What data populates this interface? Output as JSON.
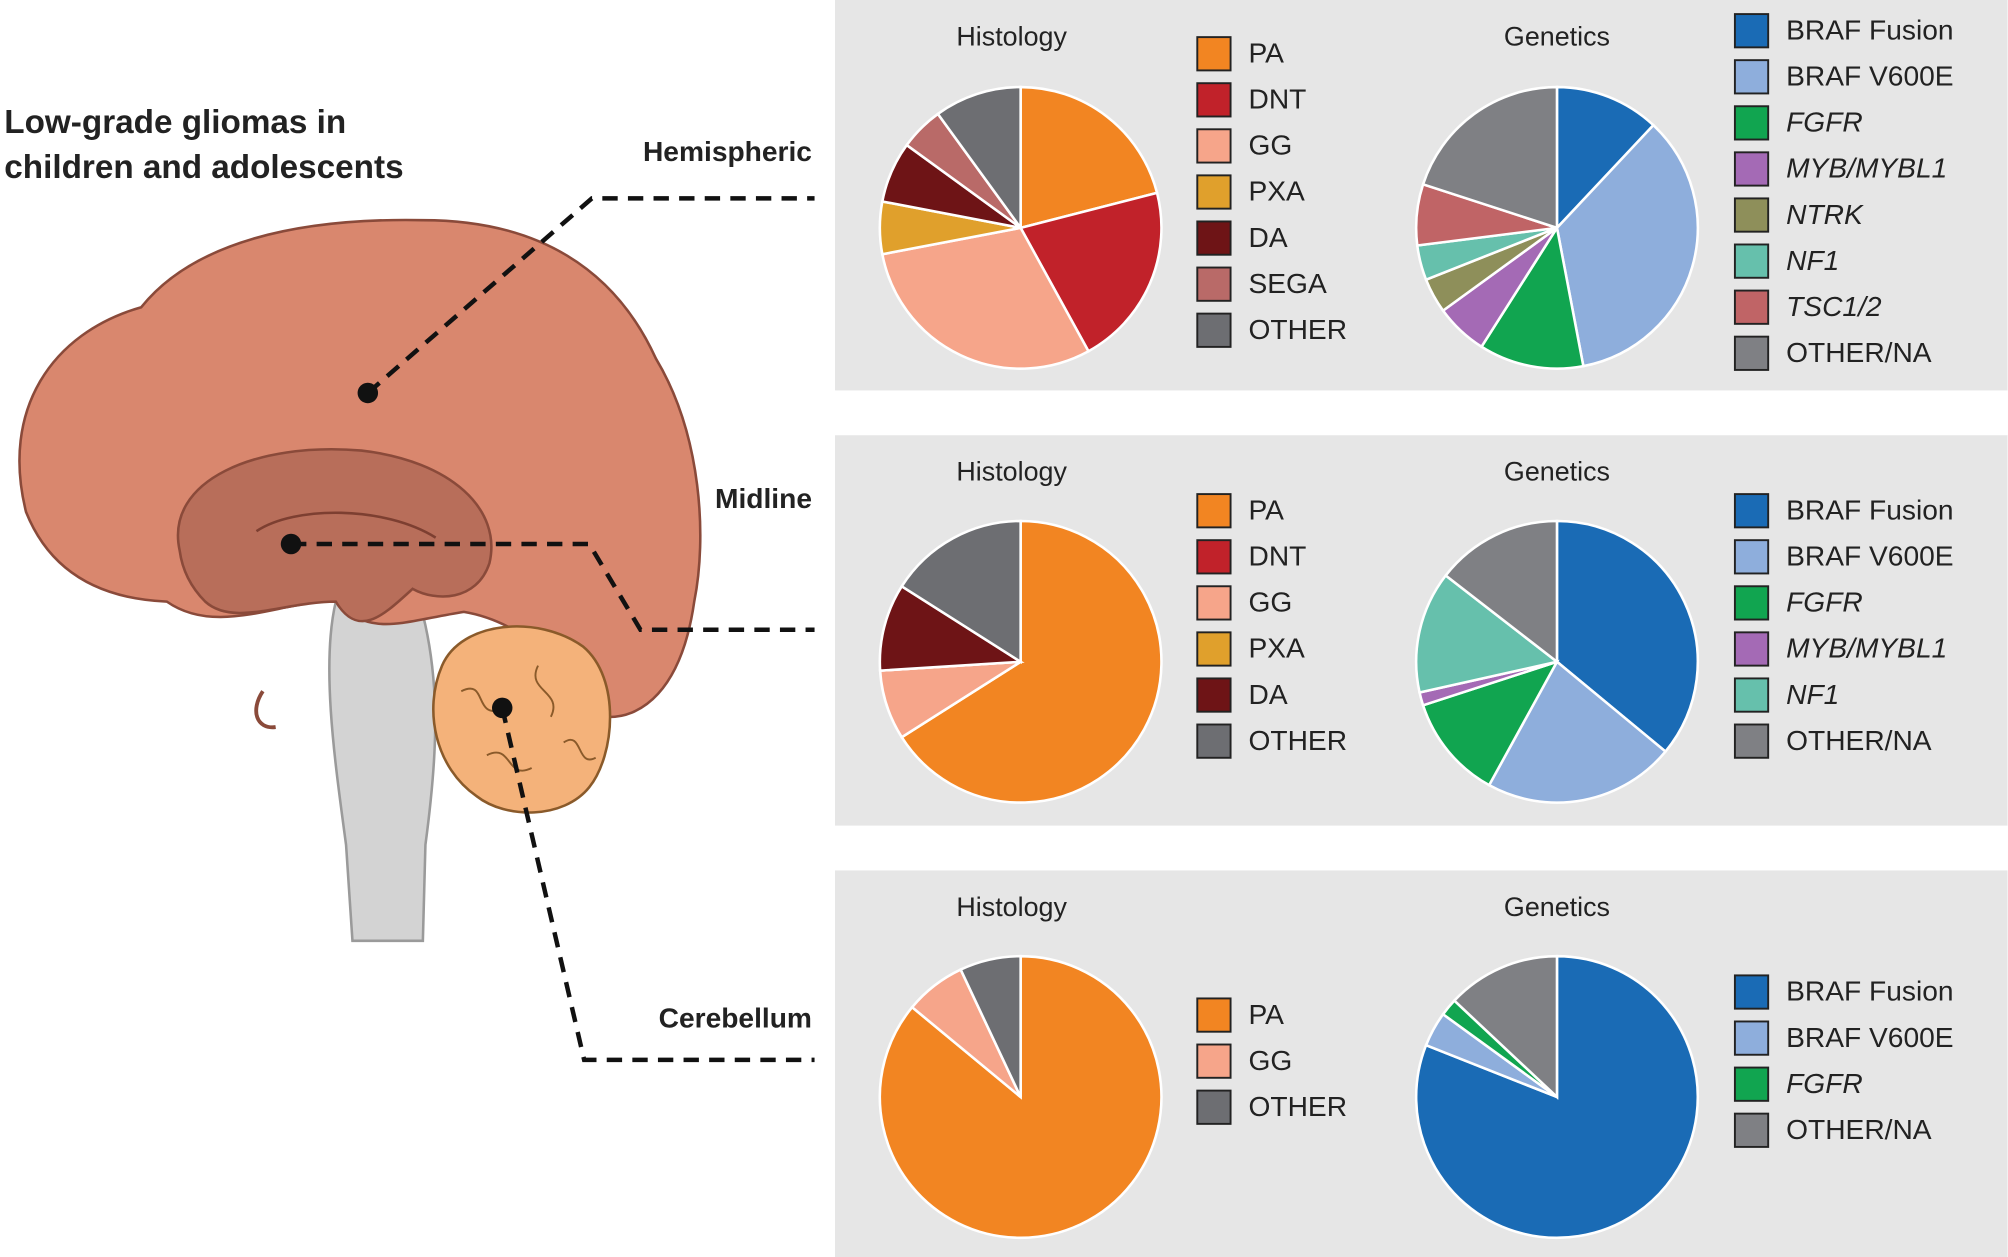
{
  "title": [
    "Low-grade gliomas in",
    "children and adolescents"
  ],
  "regions": [
    "Hemispheric",
    "Midline",
    "Cerebellum"
  ],
  "chart_data": [
    {
      "type": "pie",
      "title": "Histology",
      "categories": [
        "PA",
        "DNT",
        "GG",
        "PXA",
        "DA",
        "SEGA",
        "OTHER"
      ],
      "values": [
        21,
        21,
        30,
        6,
        7,
        5,
        10
      ],
      "colors": [
        "#f28522",
        "#c1222a",
        "#f6a58a",
        "#e0a02c",
        "#6e1416",
        "#b96a68",
        "#6d6e72"
      ],
      "italic": [
        false,
        false,
        false,
        false,
        false,
        false,
        false
      ]
    },
    {
      "type": "pie",
      "title": "Genetics",
      "categories": [
        "BRAF Fusion",
        "BRAF V600E",
        "FGFR",
        "MYB/MYBL1",
        "NTRK",
        "NF1",
        "TSC1/2",
        "OTHER/NA"
      ],
      "values": [
        12,
        35,
        12,
        6,
        4,
        4,
        7,
        20
      ],
      "colors": [
        "#1a6bb5",
        "#8eaedc",
        "#11a550",
        "#a46ab5",
        "#8e8f5a",
        "#66c0ac",
        "#c06466",
        "#7f8084"
      ],
      "italic": [
        false,
        false,
        true,
        true,
        true,
        true,
        true,
        false
      ]
    },
    {
      "type": "pie",
      "title": "Histology",
      "categories": [
        "PA",
        "DNT",
        "GG",
        "PXA",
        "DA",
        "OTHER"
      ],
      "values": [
        66,
        0,
        8,
        0,
        10,
        16
      ],
      "colors": [
        "#f28522",
        "#c1222a",
        "#f6a58a",
        "#e0a02c",
        "#6e1416",
        "#6d6e72"
      ],
      "italic": [
        false,
        false,
        false,
        false,
        false,
        false
      ]
    },
    {
      "type": "pie",
      "title": "Genetics",
      "categories": [
        "BRAF Fusion",
        "BRAF V600E",
        "FGFR",
        "MYB/MYBL1",
        "NF1",
        "OTHER/NA"
      ],
      "values": [
        36,
        22,
        12,
        1.5,
        14,
        14.5
      ],
      "colors": [
        "#1a6bb5",
        "#8eaedc",
        "#11a550",
        "#a46ab5",
        "#66c0ac",
        "#7f8084"
      ],
      "italic": [
        false,
        false,
        true,
        true,
        true,
        false
      ]
    },
    {
      "type": "pie",
      "title": "Histology",
      "categories": [
        "PA",
        "GG",
        "OTHER"
      ],
      "values": [
        86,
        7,
        7
      ],
      "colors": [
        "#f28522",
        "#f6a58a",
        "#6d6e72"
      ],
      "italic": [
        false,
        false,
        false
      ]
    },
    {
      "type": "pie",
      "title": "Genetics",
      "categories": [
        "BRAF Fusion",
        "BRAF V600E",
        "FGFR",
        "OTHER/NA"
      ],
      "values": [
        81,
        4,
        2,
        13
      ],
      "colors": [
        "#1a6bb5",
        "#8eaedc",
        "#11a550",
        "#7f8084"
      ],
      "italic": [
        false,
        false,
        true,
        false
      ]
    }
  ]
}
